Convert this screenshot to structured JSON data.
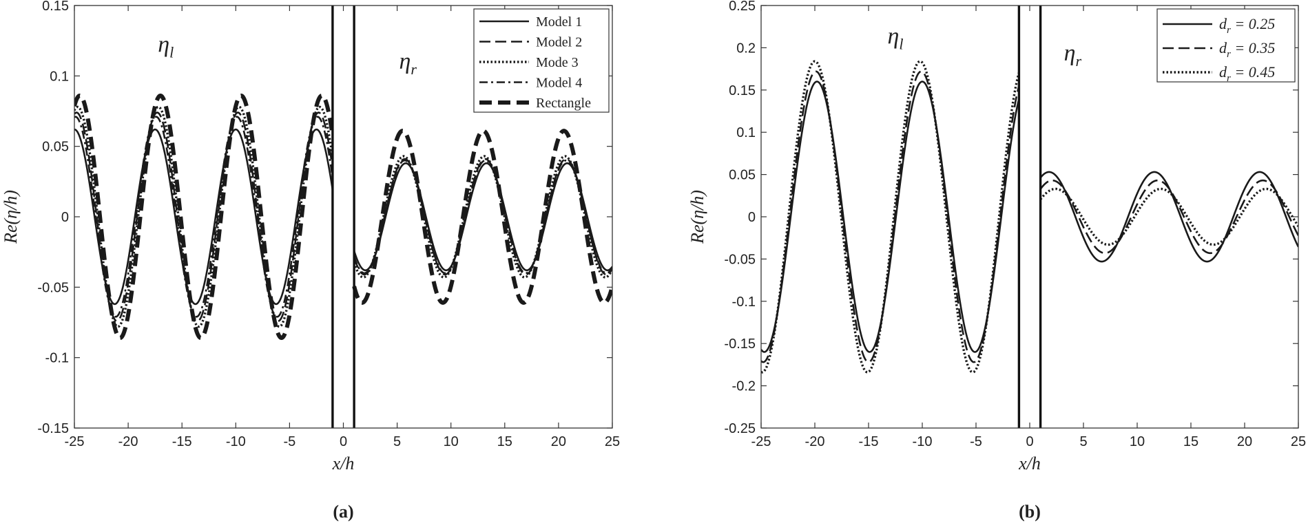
{
  "chart_data": [
    {
      "type": "line",
      "panel_label": "(a)",
      "xlabel": "x/h",
      "ylabel": "Re(η/h)",
      "xlim": [
        -25,
        25
      ],
      "ylim": [
        -0.15,
        0.15
      ],
      "xticks": [
        "-25",
        "-20",
        "-15",
        "-10",
        "-5",
        "0",
        "5",
        "10",
        "15",
        "20",
        "25"
      ],
      "yticks": [
        "0.15",
        "0.1",
        "0.05",
        "0",
        "-0.05",
        "-0.1",
        "-0.15"
      ],
      "barrier_x": [
        -1,
        1
      ],
      "region_labels": [
        {
          "symbol": "η",
          "sub": "l",
          "x": -16.5,
          "y": 0.117
        },
        {
          "symbol": "η",
          "sub": "r",
          "x": 6,
          "y": 0.105
        }
      ],
      "legend": {
        "position": "top-right",
        "entries": [
          "Model 1",
          "Model 2",
          "Mode 3",
          "Model 4",
          "Rectangle"
        ]
      },
      "series": [
        {
          "name": "Model 1",
          "style": "solid",
          "left_amp": 0.062,
          "left_peak": -17.5,
          "right_amp": 0.038,
          "right_peak": 5.8,
          "period": 7.5
        },
        {
          "name": "Model 2",
          "style": "dashed",
          "left_amp": 0.074,
          "left_peak": -17.3,
          "right_amp": 0.041,
          "right_peak": 5.7,
          "period": 7.5
        },
        {
          "name": "Mode 3",
          "style": "dotted",
          "left_amp": 0.078,
          "left_peak": -17.2,
          "right_amp": 0.043,
          "right_peak": 5.6,
          "period": 7.5
        },
        {
          "name": "Model 4",
          "style": "dashdot",
          "left_amp": 0.071,
          "left_peak": -17.4,
          "right_amp": 0.04,
          "right_peak": 5.7,
          "period": 7.5
        },
        {
          "name": "Rectangle",
          "style": "thickdash",
          "left_amp": 0.086,
          "left_peak": -17.0,
          "right_amp": 0.061,
          "right_peak": 5.5,
          "period": 7.5
        }
      ]
    },
    {
      "type": "line",
      "panel_label": "(b)",
      "xlabel": "x/h",
      "ylabel": "Re(η/h)",
      "xlim": [
        -25,
        25
      ],
      "ylim": [
        -0.25,
        0.25
      ],
      "xticks": [
        "-25",
        "-20",
        "-15",
        "-10",
        "-5",
        "0",
        "5",
        "10",
        "15",
        "20",
        "25"
      ],
      "yticks": [
        "0.25",
        "0.2",
        "0.15",
        "0.1",
        "0.05",
        "0",
        "-0.05",
        "-0.1",
        "-0.15",
        "-0.2",
        "-0.25"
      ],
      "barrier_x": [
        -1,
        1
      ],
      "region_labels": [
        {
          "symbol": "η",
          "sub": "l",
          "x": -12.5,
          "y": 0.205
        },
        {
          "symbol": "η",
          "sub": "r",
          "x": 4,
          "y": 0.185
        }
      ],
      "legend": {
        "position": "top-right",
        "entries": [
          "d_r = 0.25",
          "d_r = 0.35",
          "d_r = 0.45"
        ]
      },
      "series": [
        {
          "name": "d_r = 0.25",
          "style": "solid",
          "left_amp": 0.16,
          "left_peak": -19.8,
          "right_amp": 0.053,
          "right_peak": 11.6,
          "period": 9.8
        },
        {
          "name": "d_r = 0.35",
          "style": "dashed",
          "left_amp": 0.172,
          "left_peak": -19.9,
          "right_amp": 0.043,
          "right_peak": 11.9,
          "period": 9.8
        },
        {
          "name": "d_r = 0.45",
          "style": "dotted",
          "left_amp": 0.184,
          "left_peak": -20.0,
          "right_amp": 0.033,
          "right_peak": 12.2,
          "period": 9.8
        }
      ]
    }
  ]
}
